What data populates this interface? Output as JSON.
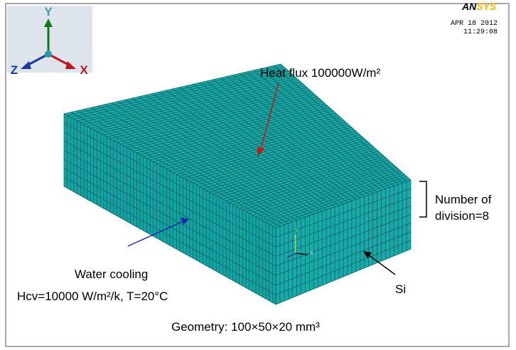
{
  "triad": {
    "y": "Y",
    "z": "Z",
    "x": "X"
  },
  "logo": {
    "an": "AN",
    "sys": "SYS"
  },
  "timestamp": {
    "date": "APR 18 2012",
    "time": "11:29:08"
  },
  "annotations": {
    "heat_flux": "Heat flux 100000W/m²",
    "divisions": [
      "Number of",
      "division=8"
    ],
    "water_cooling": "Water cooling",
    "convection": "Hcv=10000 W/m²/k, T=20°C",
    "material": "Si",
    "geometry": "Geometry: 100×50×20 mm³"
  },
  "mini_triad": {
    "y": "Y",
    "x": "X"
  }
}
